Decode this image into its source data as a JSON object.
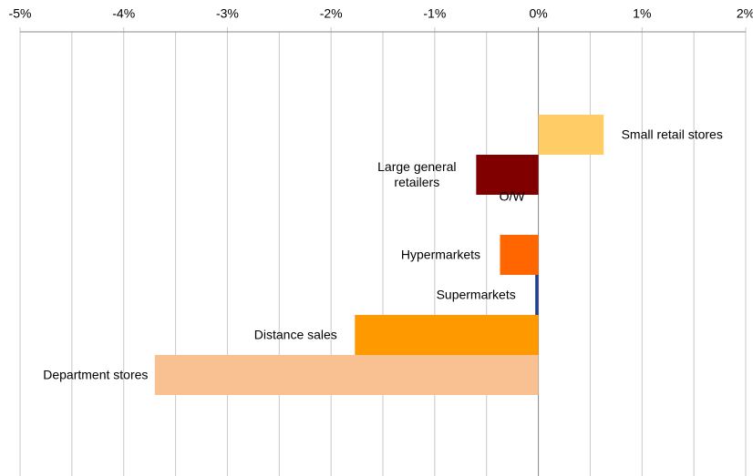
{
  "chart_data": {
    "type": "bar",
    "orientation": "horizontal",
    "categories": [
      "Small retail stores",
      "Large general retailers",
      "O/W",
      "Hypermarkets",
      "Supermarkets",
      "Distance sales",
      "Department stores"
    ],
    "values": [
      0.63,
      -0.6,
      null,
      -0.37,
      -0.03,
      -1.77,
      -3.7
    ],
    "colors": [
      "#FFCC66",
      "#800000",
      null,
      "#FF6600",
      "#1F3D99",
      "#FF9900",
      "#F9C191"
    ],
    "xlim": [
      -5,
      2
    ],
    "xticks": [
      {
        "value": -5,
        "label": "-5%"
      },
      {
        "value": -4,
        "label": "-4%"
      },
      {
        "value": -3,
        "label": "-3%"
      },
      {
        "value": -2,
        "label": "-2%"
      },
      {
        "value": -1,
        "label": "-1%"
      },
      {
        "value": 0,
        "label": "0%"
      },
      {
        "value": 1,
        "label": "1%"
      },
      {
        "value": 2,
        "label": "2%"
      }
    ],
    "x_minor_gridlines": [
      -4.5,
      -3.5,
      -2.5,
      -1.5,
      -0.5,
      0.5,
      1.5
    ],
    "grid": true,
    "xaxis_position": "top"
  }
}
